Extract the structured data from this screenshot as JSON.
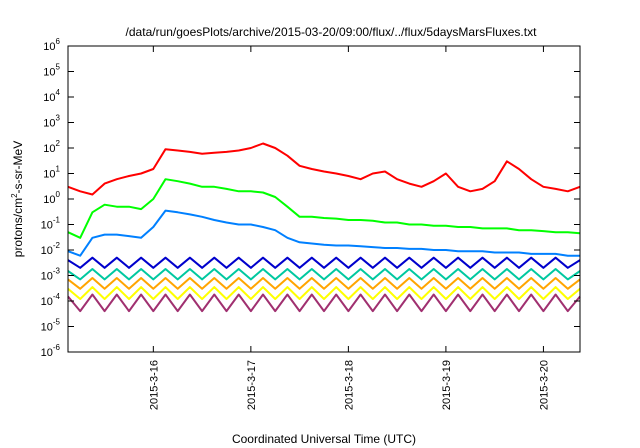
{
  "chart_data": {
    "type": "line",
    "title": "/data/run/goesPlots/archive/2015-03-20/09:00/flux/../flux/5daysMarsFluxes.txt",
    "xlabel": "Coordinated Universal Time (UTC)",
    "ylabel_parts": [
      "protons/cm",
      "2",
      "-s-sr-MeV"
    ],
    "y_scale": "log",
    "ylim": [
      1e-06,
      1000000.0
    ],
    "xlim": [
      "2015-03-15 03:00",
      "2015-03-20 09:00"
    ],
    "grid": false,
    "legend": "none",
    "x_ticks": [
      {
        "label": "2015-3-16",
        "at": "2015-03-16 00:00"
      },
      {
        "label": "2015-3-17",
        "at": "2015-03-17 00:00"
      },
      {
        "label": "2015-3-18",
        "at": "2015-03-18 00:00"
      },
      {
        "label": "2015-3-19",
        "at": "2015-03-19 00:00"
      },
      {
        "label": "2015-3-20",
        "at": "2015-03-20 00:00"
      }
    ],
    "y_ticks": [
      {
        "base": "10",
        "exp": "-6"
      },
      {
        "base": "10",
        "exp": "-5"
      },
      {
        "base": "10",
        "exp": "-4"
      },
      {
        "base": "10",
        "exp": "-3"
      },
      {
        "base": "10",
        "exp": "-2"
      },
      {
        "base": "10",
        "exp": "-1"
      },
      {
        "base": "10",
        "exp": "0"
      },
      {
        "base": "10",
        "exp": "1"
      },
      {
        "base": "10",
        "exp": "2"
      },
      {
        "base": "10",
        "exp": "3"
      },
      {
        "base": "10",
        "exp": "4"
      },
      {
        "base": "10",
        "exp": "5"
      },
      {
        "base": "10",
        "exp": "6"
      }
    ],
    "series": [
      {
        "color": "#ff0000",
        "x": [
          "2015-03-15 03:00",
          "2015-03-15 06:00",
          "2015-03-15 09:00",
          "2015-03-15 12:00",
          "2015-03-15 15:00",
          "2015-03-15 18:00",
          "2015-03-15 21:00",
          "2015-03-16 00:00",
          "2015-03-16 03:00",
          "2015-03-16 06:00",
          "2015-03-16 09:00",
          "2015-03-16 12:00",
          "2015-03-16 15:00",
          "2015-03-16 18:00",
          "2015-03-16 21:00",
          "2015-03-17 00:00",
          "2015-03-17 03:00",
          "2015-03-17 06:00",
          "2015-03-17 09:00",
          "2015-03-17 12:00",
          "2015-03-17 15:00",
          "2015-03-17 18:00",
          "2015-03-17 21:00",
          "2015-03-18 00:00",
          "2015-03-18 03:00",
          "2015-03-18 06:00",
          "2015-03-18 09:00",
          "2015-03-18 12:00",
          "2015-03-18 15:00",
          "2015-03-18 18:00",
          "2015-03-18 21:00",
          "2015-03-19 00:00",
          "2015-03-19 03:00",
          "2015-03-19 06:00",
          "2015-03-19 09:00",
          "2015-03-19 12:00",
          "2015-03-19 15:00",
          "2015-03-19 18:00",
          "2015-03-19 21:00",
          "2015-03-20 00:00",
          "2015-03-20 03:00",
          "2015-03-20 06:00",
          "2015-03-20 09:00"
        ],
        "y": [
          3,
          2,
          1.5,
          4,
          6,
          8,
          10,
          15,
          90,
          80,
          70,
          60,
          65,
          70,
          80,
          100,
          150,
          100,
          50,
          20,
          15,
          12,
          10,
          8,
          6,
          10,
          12,
          6,
          4,
          3,
          5,
          10,
          3,
          2,
          2.5,
          5,
          30,
          15,
          6,
          3,
          2.5,
          2,
          3
        ]
      },
      {
        "color": "#00ff00",
        "x": [
          "2015-03-15 03:00",
          "2015-03-15 06:00",
          "2015-03-15 09:00",
          "2015-03-15 12:00",
          "2015-03-15 15:00",
          "2015-03-15 18:00",
          "2015-03-15 21:00",
          "2015-03-16 00:00",
          "2015-03-16 03:00",
          "2015-03-16 06:00",
          "2015-03-16 09:00",
          "2015-03-16 12:00",
          "2015-03-16 15:00",
          "2015-03-16 18:00",
          "2015-03-16 21:00",
          "2015-03-17 00:00",
          "2015-03-17 03:00",
          "2015-03-17 06:00",
          "2015-03-17 09:00",
          "2015-03-17 12:00",
          "2015-03-17 15:00",
          "2015-03-17 18:00",
          "2015-03-17 21:00",
          "2015-03-18 00:00",
          "2015-03-18 03:00",
          "2015-03-18 06:00",
          "2015-03-18 09:00",
          "2015-03-18 12:00",
          "2015-03-18 15:00",
          "2015-03-18 18:00",
          "2015-03-18 21:00",
          "2015-03-19 00:00",
          "2015-03-19 03:00",
          "2015-03-19 06:00",
          "2015-03-19 09:00",
          "2015-03-19 12:00",
          "2015-03-19 15:00",
          "2015-03-19 18:00",
          "2015-03-19 21:00",
          "2015-03-20 00:00",
          "2015-03-20 03:00",
          "2015-03-20 06:00",
          "2015-03-20 09:00"
        ],
        "y": [
          0.05,
          0.03,
          0.3,
          0.6,
          0.5,
          0.5,
          0.4,
          1,
          6,
          5,
          4,
          3,
          3,
          2.5,
          2,
          2,
          1.8,
          1.2,
          0.5,
          0.2,
          0.2,
          0.18,
          0.17,
          0.15,
          0.15,
          0.14,
          0.12,
          0.12,
          0.1,
          0.1,
          0.09,
          0.09,
          0.08,
          0.08,
          0.07,
          0.07,
          0.07,
          0.06,
          0.06,
          0.055,
          0.05,
          0.05,
          0.045
        ]
      },
      {
        "color": "#0080ff",
        "x": [
          "2015-03-15 03:00",
          "2015-03-15 06:00",
          "2015-03-15 09:00",
          "2015-03-15 12:00",
          "2015-03-15 15:00",
          "2015-03-15 18:00",
          "2015-03-15 21:00",
          "2015-03-16 00:00",
          "2015-03-16 03:00",
          "2015-03-16 06:00",
          "2015-03-16 09:00",
          "2015-03-16 12:00",
          "2015-03-16 15:00",
          "2015-03-16 18:00",
          "2015-03-16 21:00",
          "2015-03-17 00:00",
          "2015-03-17 03:00",
          "2015-03-17 06:00",
          "2015-03-17 09:00",
          "2015-03-17 12:00",
          "2015-03-17 15:00",
          "2015-03-17 18:00",
          "2015-03-17 21:00",
          "2015-03-18 00:00",
          "2015-03-18 03:00",
          "2015-03-18 06:00",
          "2015-03-18 09:00",
          "2015-03-18 12:00",
          "2015-03-18 15:00",
          "2015-03-18 18:00",
          "2015-03-18 21:00",
          "2015-03-19 00:00",
          "2015-03-19 03:00",
          "2015-03-19 06:00",
          "2015-03-19 09:00",
          "2015-03-19 12:00",
          "2015-03-19 15:00",
          "2015-03-19 18:00",
          "2015-03-19 21:00",
          "2015-03-20 00:00",
          "2015-03-20 03:00",
          "2015-03-20 06:00",
          "2015-03-20 09:00"
        ],
        "y": [
          0.009,
          0.006,
          0.03,
          0.04,
          0.04,
          0.035,
          0.03,
          0.08,
          0.35,
          0.3,
          0.25,
          0.2,
          0.15,
          0.12,
          0.1,
          0.1,
          0.08,
          0.06,
          0.03,
          0.02,
          0.018,
          0.016,
          0.015,
          0.015,
          0.014,
          0.013,
          0.012,
          0.012,
          0.011,
          0.011,
          0.01,
          0.01,
          0.009,
          0.009,
          0.009,
          0.008,
          0.008,
          0.008,
          0.007,
          0.007,
          0.007,
          0.006,
          0.006
        ]
      },
      {
        "color": "#0000cc",
        "x": [
          "2015-03-15 03:00",
          "2015-03-15 06:00",
          "2015-03-15 09:00",
          "2015-03-15 12:00",
          "2015-03-15 15:00",
          "2015-03-15 18:00",
          "2015-03-15 21:00",
          "2015-03-16 00:00",
          "2015-03-16 03:00",
          "2015-03-16 06:00",
          "2015-03-16 09:00",
          "2015-03-16 12:00",
          "2015-03-16 15:00",
          "2015-03-16 18:00",
          "2015-03-16 21:00",
          "2015-03-17 00:00",
          "2015-03-17 03:00",
          "2015-03-17 06:00",
          "2015-03-17 09:00",
          "2015-03-17 12:00",
          "2015-03-17 15:00",
          "2015-03-17 18:00",
          "2015-03-17 21:00",
          "2015-03-18 00:00",
          "2015-03-18 03:00",
          "2015-03-18 06:00",
          "2015-03-18 09:00",
          "2015-03-18 12:00",
          "2015-03-18 15:00",
          "2015-03-18 18:00",
          "2015-03-18 21:00",
          "2015-03-19 00:00",
          "2015-03-19 03:00",
          "2015-03-19 06:00",
          "2015-03-19 09:00",
          "2015-03-19 12:00",
          "2015-03-19 15:00",
          "2015-03-19 18:00",
          "2015-03-19 21:00",
          "2015-03-20 00:00",
          "2015-03-20 03:00",
          "2015-03-20 06:00",
          "2015-03-20 09:00"
        ],
        "y": [
          0.004,
          0.002,
          0.005,
          0.002,
          0.005,
          0.002,
          0.005,
          0.002,
          0.005,
          0.002,
          0.005,
          0.002,
          0.005,
          0.002,
          0.005,
          0.002,
          0.005,
          0.002,
          0.005,
          0.002,
          0.005,
          0.002,
          0.005,
          0.002,
          0.005,
          0.002,
          0.005,
          0.002,
          0.005,
          0.002,
          0.005,
          0.002,
          0.005,
          0.002,
          0.005,
          0.002,
          0.005,
          0.002,
          0.005,
          0.002,
          0.005,
          0.002,
          0.004
        ]
      },
      {
        "color": "#00c8a0",
        "x": [
          "2015-03-15 03:00",
          "2015-03-15 06:00",
          "2015-03-15 09:00",
          "2015-03-15 12:00",
          "2015-03-15 15:00",
          "2015-03-15 18:00",
          "2015-03-15 21:00",
          "2015-03-16 00:00",
          "2015-03-16 03:00",
          "2015-03-16 06:00",
          "2015-03-16 09:00",
          "2015-03-16 12:00",
          "2015-03-16 15:00",
          "2015-03-16 18:00",
          "2015-03-16 21:00",
          "2015-03-17 00:00",
          "2015-03-17 03:00",
          "2015-03-17 06:00",
          "2015-03-17 09:00",
          "2015-03-17 12:00",
          "2015-03-17 15:00",
          "2015-03-17 18:00",
          "2015-03-17 21:00",
          "2015-03-18 00:00",
          "2015-03-18 03:00",
          "2015-03-18 06:00",
          "2015-03-18 09:00",
          "2015-03-18 12:00",
          "2015-03-18 15:00",
          "2015-03-18 18:00",
          "2015-03-18 21:00",
          "2015-03-19 00:00",
          "2015-03-19 03:00",
          "2015-03-19 06:00",
          "2015-03-19 09:00",
          "2015-03-19 12:00",
          "2015-03-19 15:00",
          "2015-03-19 18:00",
          "2015-03-19 21:00",
          "2015-03-20 00:00",
          "2015-03-20 03:00",
          "2015-03-20 06:00",
          "2015-03-20 09:00"
        ],
        "y": [
          0.0015,
          0.0007,
          0.0018,
          0.0007,
          0.0018,
          0.0007,
          0.0018,
          0.0007,
          0.0018,
          0.0007,
          0.0018,
          0.0007,
          0.0018,
          0.0007,
          0.0018,
          0.0007,
          0.0018,
          0.0007,
          0.0018,
          0.0007,
          0.0018,
          0.0007,
          0.0018,
          0.0007,
          0.0018,
          0.0007,
          0.0018,
          0.0007,
          0.0018,
          0.0007,
          0.0018,
          0.0007,
          0.0018,
          0.0007,
          0.0018,
          0.0007,
          0.0018,
          0.0007,
          0.0018,
          0.0007,
          0.0018,
          0.0007,
          0.0015
        ]
      },
      {
        "color": "#ffa500",
        "x": [
          "2015-03-15 03:00",
          "2015-03-15 06:00",
          "2015-03-15 09:00",
          "2015-03-15 12:00",
          "2015-03-15 15:00",
          "2015-03-15 18:00",
          "2015-03-15 21:00",
          "2015-03-16 00:00",
          "2015-03-16 03:00",
          "2015-03-16 06:00",
          "2015-03-16 09:00",
          "2015-03-16 12:00",
          "2015-03-16 15:00",
          "2015-03-16 18:00",
          "2015-03-16 21:00",
          "2015-03-17 00:00",
          "2015-03-17 03:00",
          "2015-03-17 06:00",
          "2015-03-17 09:00",
          "2015-03-17 12:00",
          "2015-03-17 15:00",
          "2015-03-17 18:00",
          "2015-03-17 21:00",
          "2015-03-18 00:00",
          "2015-03-18 03:00",
          "2015-03-18 06:00",
          "2015-03-18 09:00",
          "2015-03-18 12:00",
          "2015-03-18 15:00",
          "2015-03-18 18:00",
          "2015-03-18 21:00",
          "2015-03-19 00:00",
          "2015-03-19 03:00",
          "2015-03-19 06:00",
          "2015-03-19 09:00",
          "2015-03-19 12:00",
          "2015-03-19 15:00",
          "2015-03-19 18:00",
          "2015-03-19 21:00",
          "2015-03-20 00:00",
          "2015-03-20 03:00",
          "2015-03-20 06:00",
          "2015-03-20 09:00"
        ],
        "y": [
          0.0007,
          0.0003,
          0.0008,
          0.0003,
          0.0008,
          0.0003,
          0.0008,
          0.0003,
          0.0008,
          0.0003,
          0.0008,
          0.0003,
          0.0008,
          0.0003,
          0.0008,
          0.0003,
          0.0008,
          0.0003,
          0.0008,
          0.0003,
          0.0008,
          0.0003,
          0.0008,
          0.0003,
          0.0008,
          0.0003,
          0.0008,
          0.0003,
          0.0008,
          0.0003,
          0.0008,
          0.0003,
          0.0008,
          0.0003,
          0.0008,
          0.0003,
          0.0008,
          0.0003,
          0.0008,
          0.0003,
          0.0008,
          0.0003,
          0.0007
        ]
      },
      {
        "color": "#ffff00",
        "x": [
          "2015-03-15 03:00",
          "2015-03-15 06:00",
          "2015-03-15 09:00",
          "2015-03-15 12:00",
          "2015-03-15 15:00",
          "2015-03-15 18:00",
          "2015-03-15 21:00",
          "2015-03-16 00:00",
          "2015-03-16 03:00",
          "2015-03-16 06:00",
          "2015-03-16 09:00",
          "2015-03-16 12:00",
          "2015-03-16 15:00",
          "2015-03-16 18:00",
          "2015-03-16 21:00",
          "2015-03-17 00:00",
          "2015-03-17 03:00",
          "2015-03-17 06:00",
          "2015-03-17 09:00",
          "2015-03-17 12:00",
          "2015-03-17 15:00",
          "2015-03-17 18:00",
          "2015-03-17 21:00",
          "2015-03-18 00:00",
          "2015-03-18 03:00",
          "2015-03-18 06:00",
          "2015-03-18 09:00",
          "2015-03-18 12:00",
          "2015-03-18 15:00",
          "2015-03-18 18:00",
          "2015-03-18 21:00",
          "2015-03-19 00:00",
          "2015-03-19 03:00",
          "2015-03-19 06:00",
          "2015-03-19 09:00",
          "2015-03-19 12:00",
          "2015-03-19 15:00",
          "2015-03-19 18:00",
          "2015-03-19 21:00",
          "2015-03-20 00:00",
          "2015-03-20 03:00",
          "2015-03-20 06:00",
          "2015-03-20 09:00"
        ],
        "y": [
          0.0003,
          0.00012,
          0.00035,
          0.00012,
          0.00035,
          0.00012,
          0.00035,
          0.00012,
          0.00035,
          0.00012,
          0.00035,
          0.00012,
          0.00035,
          0.00012,
          0.00035,
          0.00012,
          0.00035,
          0.00012,
          0.00035,
          0.00012,
          0.00035,
          0.00012,
          0.00035,
          0.00012,
          0.00035,
          0.00012,
          0.00035,
          0.00012,
          0.00035,
          0.00012,
          0.00035,
          0.00012,
          0.00035,
          0.00012,
          0.00035,
          0.00012,
          0.00035,
          0.00012,
          0.00035,
          0.00012,
          0.00035,
          0.00012,
          0.0003
        ]
      },
      {
        "color": "#a03070",
        "x": [
          "2015-03-15 03:00",
          "2015-03-15 06:00",
          "2015-03-15 09:00",
          "2015-03-15 12:00",
          "2015-03-15 15:00",
          "2015-03-15 18:00",
          "2015-03-15 21:00",
          "2015-03-16 00:00",
          "2015-03-16 03:00",
          "2015-03-16 06:00",
          "2015-03-16 09:00",
          "2015-03-16 12:00",
          "2015-03-16 15:00",
          "2015-03-16 18:00",
          "2015-03-16 21:00",
          "2015-03-17 00:00",
          "2015-03-17 03:00",
          "2015-03-17 06:00",
          "2015-03-17 09:00",
          "2015-03-17 12:00",
          "2015-03-17 15:00",
          "2015-03-17 18:00",
          "2015-03-17 21:00",
          "2015-03-18 00:00",
          "2015-03-18 03:00",
          "2015-03-18 06:00",
          "2015-03-18 09:00",
          "2015-03-18 12:00",
          "2015-03-18 15:00",
          "2015-03-18 18:00",
          "2015-03-18 21:00",
          "2015-03-19 00:00",
          "2015-03-19 03:00",
          "2015-03-19 06:00",
          "2015-03-19 09:00",
          "2015-03-19 12:00",
          "2015-03-19 15:00",
          "2015-03-19 18:00",
          "2015-03-19 21:00",
          "2015-03-20 00:00",
          "2015-03-20 03:00",
          "2015-03-20 06:00",
          "2015-03-20 09:00"
        ],
        "y": [
          0.00015,
          4e-05,
          0.00018,
          4e-05,
          0.00018,
          4e-05,
          0.00018,
          4e-05,
          0.00018,
          4e-05,
          0.00018,
          4e-05,
          0.00018,
          4e-05,
          0.00018,
          4e-05,
          0.00018,
          4e-05,
          0.00018,
          4e-05,
          0.00018,
          4e-05,
          0.00018,
          4e-05,
          0.00018,
          4e-05,
          0.00018,
          4e-05,
          0.00018,
          4e-05,
          0.00018,
          4e-05,
          0.00018,
          4e-05,
          0.00018,
          4e-05,
          0.00018,
          4e-05,
          0.00018,
          4e-05,
          0.00018,
          4e-05,
          0.00015
        ]
      }
    ]
  }
}
